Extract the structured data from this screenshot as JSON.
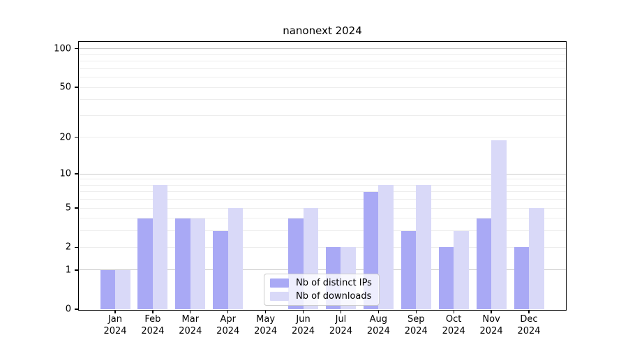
{
  "chart_data": {
    "type": "bar",
    "title": "nanonext 2024",
    "categories": [
      "Jan",
      "Feb",
      "Mar",
      "Apr",
      "May",
      "Jun",
      "Jul",
      "Aug",
      "Sep",
      "Oct",
      "Nov",
      "Dec"
    ],
    "year_label": "2024",
    "series": [
      {
        "name": "Nb of distinct IPs",
        "color": "#a9a9f5",
        "values": [
          1,
          4,
          4,
          3,
          0,
          4,
          2,
          7,
          3,
          2,
          4,
          2
        ]
      },
      {
        "name": "Nb of downloads",
        "color": "#d9d9f8",
        "values": [
          1,
          8,
          4,
          5,
          0,
          5,
          2,
          8,
          8,
          3,
          19,
          5
        ]
      }
    ],
    "yscale": "log1p",
    "ylim": [
      0,
      113
    ],
    "y_tick_values": [
      0,
      1,
      2,
      5,
      10,
      20,
      50,
      100
    ],
    "y_tick_labels": [
      "0",
      "1",
      "2",
      "5",
      "10",
      "20",
      "50",
      "100"
    ],
    "y_major_gridlines": [
      1,
      10,
      100
    ],
    "y_minor_gridlines": [
      2,
      3,
      4,
      5,
      6,
      7,
      8,
      9,
      20,
      30,
      40,
      50,
      60,
      70,
      80,
      90
    ],
    "grid": true,
    "xlabel": "",
    "ylabel": "",
    "legend_position": "lower center"
  },
  "colors": {
    "bar_distinct_ips": "#a9a9f5",
    "bar_downloads": "#d9d9f8",
    "grid_major": "#c9c9c9",
    "grid_minor": "#ededed",
    "axis": "#000000",
    "legend_border": "#cccccc",
    "background": "#ffffff"
  }
}
